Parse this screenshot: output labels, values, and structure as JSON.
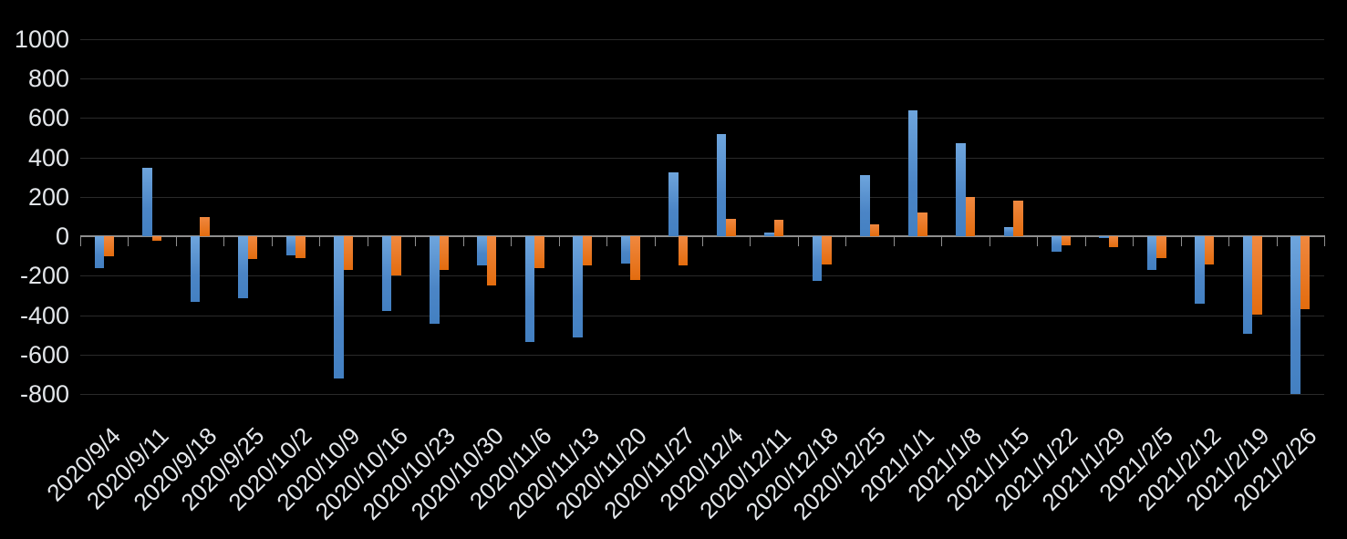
{
  "chart_data": {
    "type": "bar",
    "title": "",
    "legend": "none",
    "grid": true,
    "background_color": "#000000",
    "axis_color": "#8f8f8f",
    "gridline_color": "#2a2a2a",
    "label_color": "#e3e6ea",
    "ylim": [
      -800,
      1000
    ],
    "ytick_step": 200,
    "yticks": [
      1000,
      800,
      600,
      400,
      200,
      0,
      -200,
      -400,
      -600,
      -800
    ],
    "categories": [
      "2020/9/4",
      "2020/9/11",
      "2020/9/18",
      "2020/9/25",
      "2020/10/2",
      "2020/10/9",
      "2020/10/16",
      "2020/10/23",
      "2020/10/30",
      "2020/11/6",
      "2020/11/13",
      "2020/11/20",
      "2020/11/27",
      "2020/12/4",
      "2020/12/11",
      "2020/12/18",
      "2020/12/25",
      "2021/1/1",
      "2021/1/8",
      "2021/1/15",
      "2021/1/22",
      "2021/1/29",
      "2021/2/5",
      "2021/2/12",
      "2021/2/19",
      "2021/2/26"
    ],
    "series": [
      {
        "name": "blue-series",
        "color": "#5b9bd5",
        "values": [
          -160,
          350,
          -335,
          -315,
          -95,
          -720,
          -380,
          -445,
          -150,
          -535,
          -515,
          -140,
          325,
          520,
          20,
          -225,
          310,
          640,
          475,
          45,
          -80,
          -10,
          -170,
          -340,
          -495,
          -800
        ]
      },
      {
        "name": "orange-series",
        "color": "#ed7d31",
        "values": [
          -100,
          -25,
          100,
          -115,
          -110,
          -170,
          -200,
          -170,
          -250,
          -160,
          -150,
          -220,
          -150,
          90,
          85,
          -145,
          60,
          120,
          200,
          180,
          -45,
          -55,
          -110,
          -145,
          -400,
          -370
        ]
      }
    ]
  }
}
